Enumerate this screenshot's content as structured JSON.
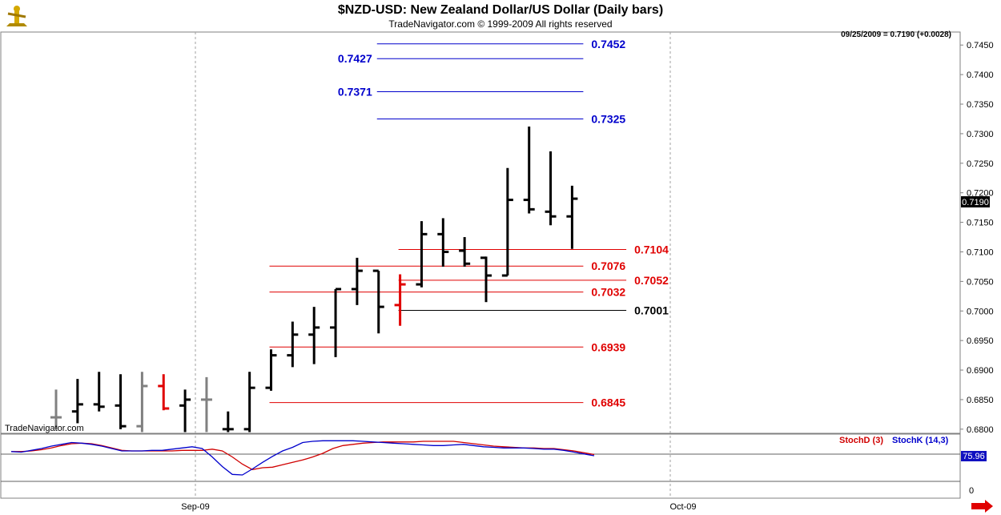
{
  "header": {
    "title": "$NZD-USD:  New Zealand Dollar/US Dollar  (Daily bars)",
    "subtitle": "TradeNavigator.com © 1999-2009 All rights reserved",
    "stamp": "09/25/2009 = 0.7190 (+0.0028)",
    "watermark": "TradeNavigator.com",
    "logo_icon": "trading-figure-icon"
  },
  "colors": {
    "resistance": "#0000cc",
    "support": "#e00000",
    "pivot": "#000000",
    "bar_black": "#000000",
    "bar_gray": "#808080",
    "bar_red": "#e00000",
    "stochD": "#d00000",
    "stochK": "#0000cc"
  },
  "chart_data": [
    {
      "type": "ohlc",
      "title": "$NZD-USD:  New Zealand Dollar/US Dollar  (Daily bars)",
      "y_ticks": [
        "0.7450",
        "0.7400",
        "0.7350",
        "0.7300",
        "0.7250",
        "0.7200",
        "0.7150",
        "0.7100",
        "0.7050",
        "0.7000",
        "0.6950",
        "0.6900",
        "0.6850",
        "0.6800"
      ],
      "x_ticks": [
        "Sep-09",
        "Oct-09"
      ],
      "ylim": [
        0.6793,
        0.7472
      ],
      "last_price": "0.7190",
      "bars": [
        {
          "o": 0.682,
          "h": 0.6867,
          "l": 0.68,
          "c": 0.682,
          "color": "gray"
        },
        {
          "o": 0.683,
          "h": 0.6885,
          "l": 0.681,
          "c": 0.6842,
          "color": "black"
        },
        {
          "o": 0.6842,
          "h": 0.6897,
          "l": 0.683,
          "c": 0.6838,
          "color": "black"
        },
        {
          "o": 0.684,
          "h": 0.6893,
          "l": 0.68,
          "c": 0.6805,
          "color": "black"
        },
        {
          "o": 0.6805,
          "h": 0.6897,
          "l": 0.6795,
          "c": 0.6873,
          "color": "gray"
        },
        {
          "o": 0.6873,
          "h": 0.6893,
          "l": 0.6832,
          "c": 0.6835,
          "color": "red"
        },
        {
          "o": 0.684,
          "h": 0.6867,
          "l": 0.6795,
          "c": 0.685,
          "color": "black"
        },
        {
          "o": 0.685,
          "h": 0.6888,
          "l": 0.6795,
          "c": 0.685,
          "color": "gray"
        },
        {
          "o": 0.68,
          "h": 0.683,
          "l": 0.6795,
          "c": 0.68,
          "color": "black"
        },
        {
          "o": 0.68,
          "h": 0.6897,
          "l": 0.6795,
          "c": 0.687,
          "color": "black"
        },
        {
          "o": 0.687,
          "h": 0.6935,
          "l": 0.6865,
          "c": 0.6925,
          "color": "black"
        },
        {
          "o": 0.6925,
          "h": 0.6982,
          "l": 0.6905,
          "c": 0.696,
          "color": "black"
        },
        {
          "o": 0.696,
          "h": 0.7007,
          "l": 0.691,
          "c": 0.6972,
          "color": "black"
        },
        {
          "o": 0.6972,
          "h": 0.7037,
          "l": 0.6922,
          "c": 0.7037,
          "color": "black"
        },
        {
          "o": 0.7037,
          "h": 0.709,
          "l": 0.701,
          "c": 0.7068,
          "color": "black"
        },
        {
          "o": 0.7068,
          "h": 0.7068,
          "l": 0.6962,
          "c": 0.7007,
          "color": "black"
        },
        {
          "o": 0.701,
          "h": 0.7062,
          "l": 0.6975,
          "c": 0.7045,
          "color": "red"
        },
        {
          "o": 0.7045,
          "h": 0.7152,
          "l": 0.704,
          "c": 0.713,
          "color": "black"
        },
        {
          "o": 0.713,
          "h": 0.7157,
          "l": 0.7075,
          "c": 0.71,
          "color": "black"
        },
        {
          "o": 0.7102,
          "h": 0.7125,
          "l": 0.7075,
          "c": 0.708,
          "color": "black"
        },
        {
          "o": 0.709,
          "h": 0.7092,
          "l": 0.7015,
          "c": 0.706,
          "color": "black"
        },
        {
          "o": 0.706,
          "h": 0.7242,
          "l": 0.706,
          "c": 0.7188,
          "color": "black"
        },
        {
          "o": 0.7188,
          "h": 0.7312,
          "l": 0.7165,
          "c": 0.7172,
          "color": "black"
        },
        {
          "o": 0.7168,
          "h": 0.727,
          "l": 0.7145,
          "c": 0.716,
          "color": "black"
        },
        {
          "o": 0.716,
          "h": 0.7212,
          "l": 0.7105,
          "c": 0.719,
          "color": "black"
        }
      ],
      "levels": [
        {
          "value": 0.7452,
          "label": "0.7452",
          "role": "resistance",
          "from_bar": 15,
          "to_bar": 24,
          "label_side": "right"
        },
        {
          "value": 0.7427,
          "label": "0.7427",
          "role": "resistance",
          "from_bar": 15,
          "to_bar": 24,
          "label_side": "left"
        },
        {
          "value": 0.7371,
          "label": "0.7371",
          "role": "resistance",
          "from_bar": 15,
          "to_bar": 24,
          "label_side": "left"
        },
        {
          "value": 0.7325,
          "label": "0.7325",
          "role": "resistance",
          "from_bar": 15,
          "to_bar": 24,
          "label_side": "right"
        },
        {
          "value": 0.7104,
          "label": "0.7104",
          "role": "support",
          "from_bar": 16,
          "to_bar": 26,
          "label_side": "right"
        },
        {
          "value": 0.7076,
          "label": "0.7076",
          "role": "support",
          "from_bar": 10,
          "to_bar": 24,
          "label_side": "right"
        },
        {
          "value": 0.7052,
          "label": "0.7052",
          "role": "support",
          "from_bar": 16,
          "to_bar": 26,
          "label_side": "right"
        },
        {
          "value": 0.7032,
          "label": "0.7032",
          "role": "support",
          "from_bar": 10,
          "to_bar": 24,
          "label_side": "right"
        },
        {
          "value": 0.7001,
          "label": "0.7001",
          "role": "pivot",
          "from_bar": 16,
          "to_bar": 26,
          "label_side": "right"
        },
        {
          "value": 0.6939,
          "label": "0.6939",
          "role": "support",
          "from_bar": 10,
          "to_bar": 24,
          "label_side": "right"
        },
        {
          "value": 0.6845,
          "label": "0.6845",
          "role": "support",
          "from_bar": 10,
          "to_bar": 24,
          "label_side": "right"
        }
      ]
    },
    {
      "type": "line",
      "legend": [
        {
          "name": "StochD (3)",
          "color": "#d00000"
        },
        {
          "name": "StochK (14,3)",
          "color": "#0000cc"
        }
      ],
      "last_value": "75.96",
      "y_ticks": [
        "0"
      ],
      "ylim": [
        0,
        100
      ],
      "series": [
        {
          "name": "StochD (3)",
          "values": [
            75,
            75,
            76,
            78,
            81,
            85,
            88,
            89,
            88,
            85,
            81,
            77,
            76,
            76,
            76,
            76,
            76,
            77,
            77,
            77,
            79,
            76,
            66,
            54,
            45,
            48,
            49,
            53,
            57,
            61,
            66,
            72,
            80,
            85,
            87,
            89,
            90,
            91,
            91,
            91,
            91,
            92,
            92,
            92,
            92,
            90,
            88,
            86,
            84,
            83,
            82,
            81,
            81,
            80,
            80,
            78,
            76,
            73,
            70
          ]
        },
        {
          "name": "StochK (14,3)",
          "values": [
            75,
            74,
            77,
            80,
            84,
            87,
            90,
            89,
            87,
            84,
            80,
            76,
            76,
            76,
            77,
            77,
            79,
            81,
            83,
            80,
            66,
            50,
            37,
            36,
            46,
            57,
            67,
            76,
            82,
            90,
            92,
            93,
            93,
            93,
            93,
            92,
            91,
            90,
            89,
            88,
            87,
            86,
            85,
            85,
            86,
            87,
            85,
            83,
            82,
            81,
            81,
            81,
            80,
            79,
            79,
            77,
            74,
            71,
            68
          ]
        }
      ]
    }
  ]
}
